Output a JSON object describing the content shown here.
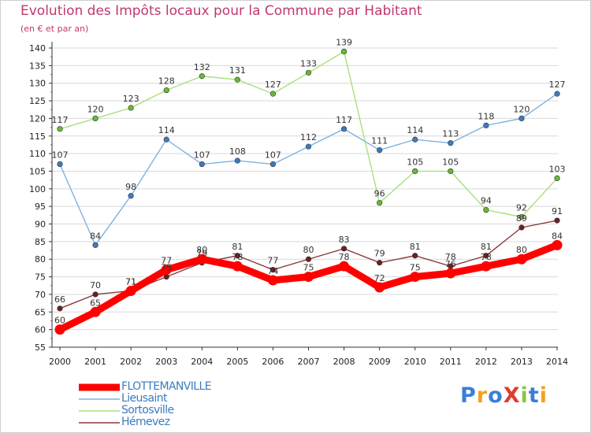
{
  "header": {
    "title": "Evolution des Impôts locaux pour la Commune par Habitant",
    "subtitle": "(en € et par an)"
  },
  "logo": {
    "text": "ProXiti",
    "colors": [
      "#3a7fd5",
      "#f2a21a",
      "#3a7fd5",
      "#e03c2b",
      "#8cc63f",
      "#3a7fd5",
      "#f2a21a"
    ]
  },
  "colors": {
    "title": "#c0386f",
    "grid": "#d9d9d9",
    "axis": "#333333"
  },
  "chart_data": {
    "type": "line",
    "title": "Evolution des Impôts locaux pour la Commune par Habitant",
    "subtitle": "(en € et par an)",
    "x": [
      "2000",
      "2001",
      "2002",
      "2003",
      "2004",
      "2005",
      "2006",
      "2007",
      "2008",
      "2009",
      "2010",
      "2011",
      "2012",
      "2013",
      "2014"
    ],
    "ylim": [
      55,
      140
    ],
    "yticks": [
      55,
      60,
      65,
      70,
      75,
      80,
      85,
      90,
      95,
      100,
      105,
      110,
      115,
      120,
      125,
      130,
      135,
      140
    ],
    "grid": true,
    "legend_position": "bottom-left",
    "series": [
      {
        "name": "FLOTTEMANVILLE",
        "color": "#ff0000",
        "line_color": "#ff0000",
        "marker_color": "#ff0000",
        "label_color": "#333333",
        "thick": true,
        "values": [
          60,
          65,
          71,
          77,
          80,
          78,
          74,
          75,
          78,
          72,
          75,
          76,
          78,
          80,
          84
        ]
      },
      {
        "name": "Lieusaint",
        "color": "#3d7bbf",
        "line_color": "#7fb2de",
        "marker_color": "#3d7bbf",
        "label_color": "#333333",
        "thick": false,
        "values": [
          107,
          84,
          98,
          114,
          107,
          108,
          107,
          112,
          117,
          111,
          114,
          113,
          118,
          120,
          127
        ]
      },
      {
        "name": "Sortosville",
        "color": "#66bb33",
        "line_color": "#a8e07a",
        "marker_color": "#66bb33",
        "label_color": "#333333",
        "thick": false,
        "values": [
          117,
          120,
          123,
          128,
          132,
          131,
          127,
          133,
          139,
          96,
          105,
          105,
          94,
          92,
          103
        ]
      },
      {
        "name": "Hémevez",
        "color": "#6e1f22",
        "line_color": "#8a3a3c",
        "marker_color": "#6e1f22",
        "label_color": "#333333",
        "thick": false,
        "values": [
          66,
          70,
          71,
          75,
          79,
          81,
          77,
          80,
          83,
          79,
          81,
          78,
          81,
          89,
          91
        ]
      }
    ]
  }
}
